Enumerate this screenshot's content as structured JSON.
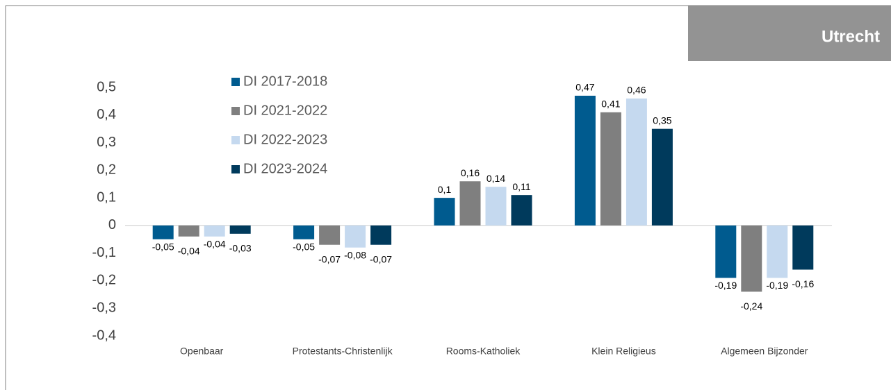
{
  "chart_data": {
    "type": "bar",
    "badge": "Utrecht",
    "categories": [
      "Openbaar",
      "Protestants-Christenlijk",
      "Rooms-Katholiek",
      "Klein Religieus",
      "Algemeen Bijzonder"
    ],
    "series": [
      {
        "name": "DI 2017-2018",
        "color": "#005b8f",
        "values": [
          -0.05,
          -0.05,
          0.1,
          0.47,
          -0.19
        ],
        "value_labels": [
          "-0,05",
          "-0,05",
          "0,1",
          "0,47",
          "-0,19"
        ]
      },
      {
        "name": "DI 2021-2022",
        "color": "#7f7f7f",
        "values": [
          -0.04,
          -0.07,
          0.16,
          0.41,
          -0.24
        ],
        "value_labels": [
          "-0,04",
          "-0,07",
          "0,16",
          "0,41",
          "-0,24"
        ]
      },
      {
        "name": "DI 2022-2023",
        "color": "#c5d9ef",
        "values": [
          -0.04,
          -0.08,
          0.14,
          0.46,
          -0.19
        ],
        "value_labels": [
          "-0,04",
          "-0,08",
          "0,14",
          "0,46",
          "-0,19"
        ]
      },
      {
        "name": "DI 2023-2024",
        "color": "#003a5c",
        "values": [
          -0.03,
          -0.07,
          0.11,
          0.35,
          -0.16
        ],
        "value_labels": [
          "-0,03",
          "-0,07",
          "0,11",
          "0,35",
          "-0,16"
        ]
      }
    ],
    "ylim": [
      -0.4,
      0.5
    ],
    "yticks": [
      {
        "value": 0.5,
        "label": "0,5"
      },
      {
        "value": 0.4,
        "label": "0,4"
      },
      {
        "value": 0.3,
        "label": "0,3"
      },
      {
        "value": 0.2,
        "label": "0,2"
      },
      {
        "value": 0.1,
        "label": "0,1"
      },
      0,
      {
        "value": -0.1,
        "label": "-0,1"
      },
      {
        "value": -0.2,
        "label": "-0,2"
      },
      {
        "value": -0.3,
        "label": "-0,3"
      },
      {
        "value": -0.4,
        "label": "-0,4"
      }
    ]
  }
}
